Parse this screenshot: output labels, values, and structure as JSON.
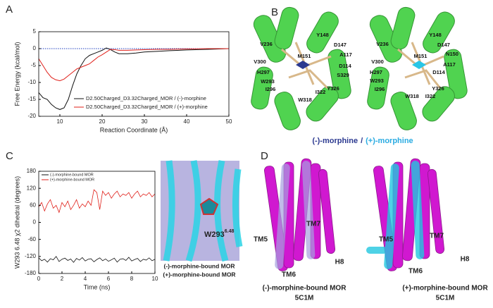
{
  "chart_data": [
    {
      "type": "line",
      "xlabel": "Reaction Coordinate (Å)",
      "ylabel": "Free Energy (kcal/mol)",
      "x": [
        5,
        6,
        7,
        8,
        9,
        10,
        11,
        12,
        13,
        14,
        15,
        16,
        17,
        18,
        19,
        20,
        21,
        22,
        23,
        24,
        25,
        26,
        28,
        30,
        33,
        36,
        40,
        45,
        50
      ],
      "series": [
        {
          "name": "D2.50Charged_D3.32Charged_MOR / (-)-morphine",
          "color": "#111111",
          "values": [
            -13,
            -14.5,
            -15,
            -16.5,
            -17.5,
            -18,
            -17.5,
            -15,
            -11,
            -7.5,
            -5,
            -3,
            -2,
            -1.5,
            -1,
            -0.5,
            0.2,
            -0.3,
            -1,
            -1.5,
            -1.5,
            -1.5,
            -1.3,
            -1,
            -0.8,
            -0.6,
            -0.4,
            -0.2,
            0
          ]
        },
        {
          "name": "D2.50Charged_D3.32Charged_MOR / (+)-morphine",
          "color": "#e0201a",
          "values": [
            -3,
            -5,
            -7,
            -8.5,
            -9.2,
            -9.5,
            -9,
            -8,
            -7,
            -6,
            -5.5,
            -5,
            -4.5,
            -3.5,
            -2.5,
            -1.8,
            -1,
            -0.2,
            -0.3,
            -0.5,
            -0.5,
            -0.5,
            -0.4,
            -0.3,
            -0.2,
            -0.2,
            -0.1,
            0,
            0
          ]
        }
      ],
      "hline": {
        "value": 0,
        "color": "#1f3fbf"
      },
      "xlim": [
        5,
        50
      ],
      "xticks": [
        10,
        20,
        30,
        40,
        50
      ],
      "ylim": [
        -20,
        5
      ],
      "yticks": [
        -20,
        -15,
        -10,
        -5,
        0,
        5
      ]
    },
    {
      "type": "line",
      "xlabel": "Time (ns)",
      "ylabel": "W293 6.48 χ2 dihedral (degrees)",
      "x": [
        0,
        0.25,
        0.5,
        0.75,
        1,
        1.25,
        1.5,
        1.75,
        2,
        2.25,
        2.5,
        2.75,
        3,
        3.25,
        3.5,
        3.75,
        4,
        4.25,
        4.5,
        4.75,
        5,
        5.25,
        5.5,
        5.75,
        6,
        6.25,
        6.5,
        6.75,
        7,
        7.25,
        7.5,
        7.75,
        8,
        8.25,
        8.5,
        8.75,
        9,
        9.25,
        9.5,
        9.75,
        10
      ],
      "series": [
        {
          "name": "(-)-morphine-bound MOR",
          "color": "#111111",
          "values": [
            -125,
            -135,
            -130,
            -140,
            -128,
            -132,
            -120,
            -138,
            -130,
            -126,
            -134,
            -129,
            -141,
            -127,
            -133,
            -124,
            -136,
            -130,
            -128,
            -139,
            -131,
            -125,
            -135,
            -129,
            -137,
            -132,
            -126,
            -140,
            -130,
            -128,
            -134,
            -123,
            -136,
            -131,
            -127,
            -138,
            -130,
            -133,
            -125,
            -135,
            -130
          ]
        },
        {
          "name": "(+)-morphine-bound MOR",
          "color": "#e0201a",
          "values": [
            55,
            70,
            40,
            65,
            80,
            50,
            60,
            35,
            70,
            55,
            75,
            45,
            60,
            80,
            50,
            65,
            55,
            75,
            60,
            115,
            105,
            45,
            110,
            95,
            105,
            85,
            100,
            110,
            90,
            100,
            95,
            105,
            85,
            100,
            110,
            90,
            100,
            95,
            105,
            90,
            100
          ]
        }
      ],
      "xlim": [
        0,
        10
      ],
      "xticks": [
        0,
        2,
        4,
        6,
        8,
        10
      ],
      "ylim": [
        -180,
        180
      ],
      "yticks": [
        -180,
        -120,
        -60,
        0,
        60,
        120,
        180
      ]
    }
  ],
  "panel_labels": [
    "A",
    "B",
    "C",
    "D"
  ],
  "panel_b": {
    "left_residues": [
      "V236",
      "Y148",
      "D147",
      "A117",
      "M151",
      "V300",
      "D114",
      "H297",
      "S329",
      "W293",
      "I296",
      "Y326",
      "I322",
      "W318"
    ],
    "right_residues": [
      "V236",
      "Y148",
      "D147",
      "N150",
      "M151",
      "V300",
      "A117",
      "H297",
      "D114",
      "W293",
      "I296",
      "Y326",
      "W318",
      "I322"
    ],
    "caption_minus": "(-)-morphine",
    "caption_sep": "/",
    "caption_plus": "(+)-morphine"
  },
  "panel_c_image": {
    "residue": "W293",
    "superscript": "6.48",
    "label_minus": "(-)-morphine-bound MOR",
    "label_plus": "(+)-morphine-bound MOR"
  },
  "panel_d": {
    "left": {
      "labels": [
        "TM5",
        "TM7",
        "TM6",
        "H8"
      ],
      "caption": "(-)-morphine-bound MOR",
      "reference": "5C1M"
    },
    "right": {
      "labels": [
        "TM5",
        "TM7",
        "TM6",
        "H8"
      ],
      "caption": "(+)-morphine-bound MOR",
      "reference": "5C1M"
    }
  }
}
